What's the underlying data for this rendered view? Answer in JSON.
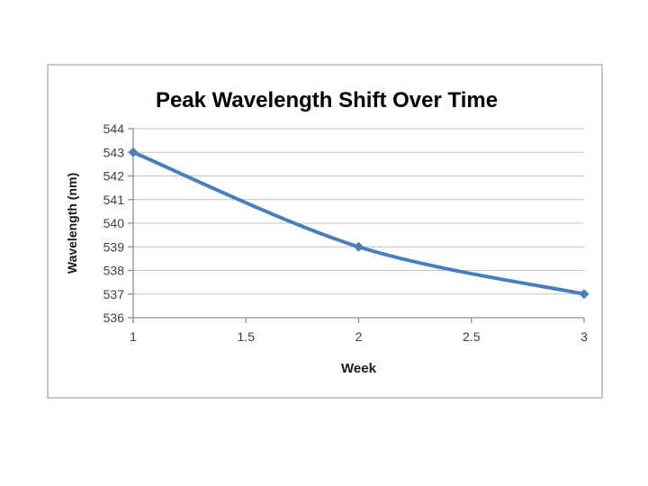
{
  "page": {
    "background_color": "#ffffff"
  },
  "chart_frame": {
    "border_color": "#C9C9C9",
    "background_color": "#ffffff"
  },
  "chart_data": {
    "type": "line",
    "title": "Peak Wavelength Shift Over Time",
    "xlabel": "Week",
    "ylabel": "Wavelength (nm)",
    "x": [
      1,
      2,
      3
    ],
    "y": [
      543,
      539,
      537
    ],
    "xlim": [
      1,
      3
    ],
    "ylim": [
      536,
      544
    ],
    "x_ticks": [
      1,
      1.5,
      2,
      2.5,
      3
    ],
    "y_ticks": [
      536,
      537,
      538,
      539,
      540,
      541,
      542,
      543,
      544
    ],
    "grid": "horizontal-only",
    "legend": "none",
    "smooth_line": true,
    "marker": "diamond",
    "line_color": "#4A7EBB",
    "marker_color": "#4A7EBB",
    "gridline_color": "#C2C2C2",
    "axis_color": "#8F8F8F",
    "tick_label_color": "#3F3F3F",
    "title_color": "#000000"
  }
}
